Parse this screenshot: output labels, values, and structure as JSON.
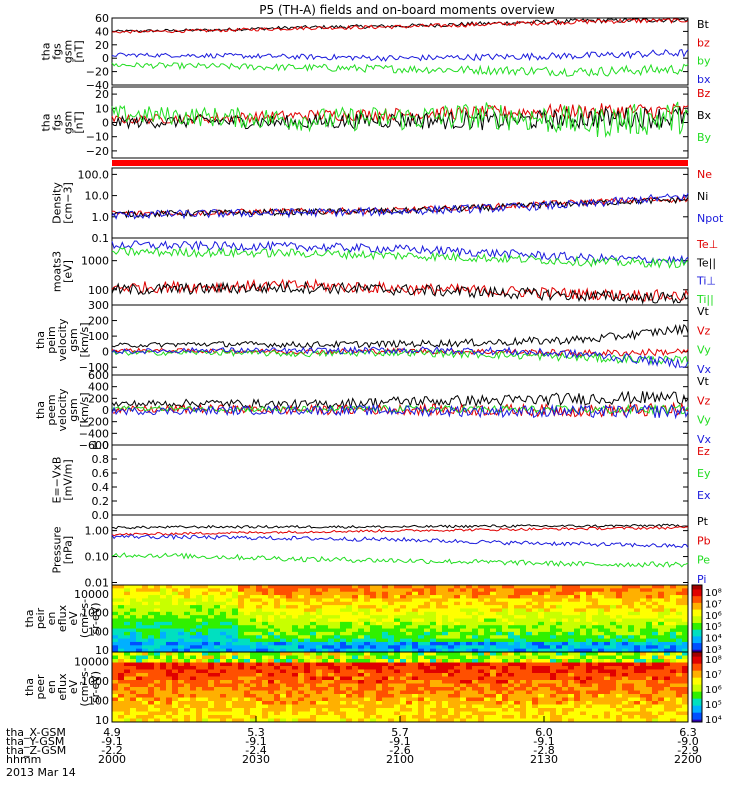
{
  "title": "P5 (TH-A) fields and on-board moments overview",
  "date_label": "2013 Mar 14",
  "footer": {
    "rows": [
      {
        "label": "tha_X-GSM",
        "values": [
          "4.9",
          "5.3",
          "5.7",
          "6.0",
          "6.3"
        ]
      },
      {
        "label": "tha_Y-GSM",
        "values": [
          "-9.1",
          "-9.1",
          "-9.1",
          "-9.1",
          "-9.0"
        ]
      },
      {
        "label": "tha_Z-GSM",
        "values": [
          "-2.2",
          "-2.4",
          "-2.6",
          "-2.8",
          "-2.9"
        ]
      },
      {
        "label": "hhmm",
        "values": [
          "2000",
          "2030",
          "2100",
          "2130",
          "2200"
        ]
      }
    ]
  },
  "colors": {
    "black": "#000000",
    "red": "#e00000",
    "green": "#22dd22",
    "blue": "#1a1adc",
    "magenta": "#a000a0"
  },
  "chart_data": [
    {
      "type": "line",
      "ylabel": [
        "tha",
        "fgs",
        "gsm",
        "[nT]"
      ],
      "ylim": [
        -40,
        60
      ],
      "ticks": [
        "60",
        "40",
        "20",
        "0",
        "−20",
        "−40"
      ],
      "tick_values": [
        60,
        40,
        20,
        0,
        -20,
        -40
      ],
      "series": [
        {
          "name": "Bt",
          "color": "#000000",
          "base": [
            40,
            42,
            46,
            48,
            52,
            56,
            58
          ],
          "noise": 2
        },
        {
          "name": "bz",
          "color": "#e00000",
          "base": [
            39,
            41,
            45,
            47,
            51,
            55,
            57
          ],
          "noise": 2
        },
        {
          "name": "by",
          "color": "#22dd22",
          "base": [
            -10,
            -12,
            -14,
            -16,
            -18,
            -20,
            -16
          ],
          "noise": 4
        },
        {
          "name": "bx",
          "color": "#1a1adc",
          "base": [
            5,
            4,
            2,
            0,
            2,
            4,
            8
          ],
          "noise": 3
        }
      ]
    },
    {
      "type": "line",
      "ylabel": [
        "tha",
        "fgs",
        "gsm",
        "[nT]"
      ],
      "ylim": [
        -25,
        25
      ],
      "ticks": [
        "20",
        "10",
        "0",
        "−10",
        "−20"
      ],
      "tick_values": [
        20,
        10,
        0,
        -10,
        -20
      ],
      "series": [
        {
          "name": "Bz",
          "color": "#e00000",
          "base": [
            2,
            3,
            5,
            6,
            7,
            8,
            8
          ],
          "noise": 3
        },
        {
          "name": "Bx",
          "color": "#000000",
          "base": [
            0,
            1,
            0,
            2,
            1,
            3,
            4
          ],
          "noise": 4
        },
        {
          "name": "By",
          "color": "#22dd22",
          "base": [
            6,
            4,
            2,
            3,
            5,
            0,
            4
          ],
          "noise": 6
        }
      ]
    },
    {
      "type": "bar",
      "note": "solid red band (mode indicator)",
      "color": "#ff0000"
    },
    {
      "type": "line",
      "ylabel": [
        "Density",
        "[cm−3]"
      ],
      "scale": "log",
      "ylim": [
        0.1,
        200
      ],
      "ticks": [
        "100.0",
        "10.0",
        "1.0",
        "0.1"
      ],
      "tick_values": [
        100,
        10,
        1,
        0.1
      ],
      "series": [
        {
          "name": "Ne",
          "color": "#e00000",
          "base": [
            1.4,
            1.6,
            1.8,
            2.0,
            3.0,
            5.0,
            7.0
          ],
          "noise": 0.15
        },
        {
          "name": "Ni",
          "color": "#000000",
          "base": [
            1.3,
            1.5,
            1.7,
            1.9,
            2.8,
            4.5,
            6.5
          ],
          "noise": 0.15
        },
        {
          "name": "Npot",
          "color": "#1a1adc",
          "base": [
            1.2,
            1.4,
            1.6,
            1.8,
            2.6,
            4.0,
            9.0
          ],
          "noise": 0.2
        }
      ]
    },
    {
      "type": "line",
      "ylabel": [
        "moats3",
        "[eV]"
      ],
      "scale": "log",
      "ylim": [
        30,
        6000
      ],
      "ticks": [
        "1000",
        "100"
      ],
      "tick_values": [
        1000,
        100
      ],
      "series": [
        {
          "name": "Te⊥",
          "color": "#e00000",
          "base": [
            120,
            130,
            140,
            110,
            90,
            70,
            60
          ],
          "noise": 0.2
        },
        {
          "name": "Te||",
          "color": "#000000",
          "base": [
            100,
            110,
            120,
            100,
            80,
            60,
            50
          ],
          "noise": 0.2
        },
        {
          "name": "Ti⊥",
          "color": "#1a1adc",
          "base": [
            3500,
            3200,
            3000,
            2500,
            1800,
            1200,
            1000
          ],
          "noise": 0.15
        },
        {
          "name": "Ti||",
          "color": "#22dd22",
          "base": [
            2000,
            1900,
            1800,
            1500,
            1200,
            900,
            800
          ],
          "noise": 0.15
        }
      ]
    },
    {
      "type": "line",
      "ylabel": [
        "tha",
        "peim",
        "velocity",
        "gsm",
        "[km/s]"
      ],
      "ylim": [
        -150,
        300
      ],
      "ticks": [
        "300",
        "200",
        "100",
        "0",
        "−100"
      ],
      "tick_values": [
        300,
        200,
        100,
        0,
        -100
      ],
      "series": [
        {
          "name": "Vt",
          "color": "#000000",
          "base": [
            40,
            50,
            45,
            50,
            60,
            80,
            150
          ],
          "noise": 15
        },
        {
          "name": "Vz",
          "color": "#e00000",
          "base": [
            10,
            5,
            0,
            5,
            0,
            -10,
            0
          ],
          "noise": 12
        },
        {
          "name": "Vy",
          "color": "#22dd22",
          "base": [
            -10,
            -5,
            -15,
            -5,
            -20,
            -40,
            -60
          ],
          "noise": 15
        },
        {
          "name": "Vx",
          "color": "#1a1adc",
          "base": [
            0,
            10,
            5,
            10,
            5,
            -20,
            -80
          ],
          "noise": 15
        }
      ]
    },
    {
      "type": "line",
      "ylabel": [
        "tha",
        "peem",
        "velocity",
        "gsm",
        "[km/s]"
      ],
      "ylim": [
        -600,
        600
      ],
      "ticks": [
        "600",
        "400",
        "200",
        "0",
        "−200",
        "−400",
        "−600"
      ],
      "tick_values": [
        600,
        400,
        200,
        0,
        -200,
        -400,
        -600
      ],
      "series": [
        {
          "name": "Vt",
          "color": "#000000",
          "base": [
            100,
            120,
            90,
            150,
            160,
            200,
            220
          ],
          "noise": 60
        },
        {
          "name": "Vz",
          "color": "#e00000",
          "base": [
            0,
            20,
            0,
            10,
            0,
            -10,
            0
          ],
          "noise": 60
        },
        {
          "name": "Vy",
          "color": "#22dd22",
          "base": [
            30,
            20,
            10,
            20,
            10,
            0,
            10
          ],
          "noise": 40
        },
        {
          "name": "Vx",
          "color": "#1a1adc",
          "base": [
            -20,
            -10,
            0,
            -10,
            -20,
            -30,
            -20
          ],
          "noise": 60
        }
      ]
    },
    {
      "type": "line",
      "ylabel": [
        "E=−VxB",
        "[mV/m]"
      ],
      "ylim": [
        0,
        1
      ],
      "ticks": [
        "1.0",
        "0.8",
        "0.6",
        "0.4",
        "0.2",
        "0.0"
      ],
      "tick_values": [
        1,
        0.8,
        0.6,
        0.4,
        0.2,
        0
      ],
      "series": [
        {
          "name": "Ez",
          "color": "#e00000",
          "base": [],
          "noise": 0
        },
        {
          "name": "Ey",
          "color": "#22dd22",
          "base": [],
          "noise": 0
        },
        {
          "name": "Ex",
          "color": "#1a1adc",
          "base": [],
          "noise": 0
        }
      ]
    },
    {
      "type": "line",
      "ylabel": [
        "Pressure",
        "[nPa]"
      ],
      "scale": "log",
      "ylim": [
        0.008,
        4
      ],
      "ticks": [
        "1.00",
        "0.10",
        "0.01"
      ],
      "tick_values": [
        1,
        0.1,
        0.01
      ],
      "series": [
        {
          "name": "Pt",
          "color": "#000000",
          "base": [
            1.3,
            1.4,
            1.4,
            1.4,
            1.5,
            1.5,
            1.6
          ],
          "noise": 0.05
        },
        {
          "name": "Pb",
          "color": "#e00000",
          "base": [
            0.7,
            0.8,
            0.9,
            1.0,
            1.1,
            1.2,
            1.3
          ],
          "noise": 0.05
        },
        {
          "name": "Pe",
          "color": "#22dd22",
          "base": [
            0.12,
            0.1,
            0.08,
            0.07,
            0.06,
            0.05,
            0.05
          ],
          "noise": 0.1
        },
        {
          "name": "Pi",
          "color": "#1a1adc",
          "base": [
            0.6,
            0.55,
            0.5,
            0.45,
            0.35,
            0.3,
            0.25
          ],
          "noise": 0.08
        }
      ]
    },
    {
      "type": "heatmap",
      "ylabel": [
        "tha",
        "peir",
        "en",
        "eflux",
        "eV",
        "(cm²-s-",
        "sr-eV)"
      ],
      "scale": "log",
      "ylim": [
        8,
        30000
      ],
      "ticks": [
        "10000",
        "1000",
        "100",
        "10"
      ],
      "tick_values": [
        10000,
        1000,
        100,
        10
      ],
      "colorbar_ticks": [
        "10⁸",
        "10⁷",
        "10⁶",
        "10⁵",
        "10⁴",
        "10³"
      ]
    },
    {
      "type": "heatmap",
      "ylabel": [
        "tha",
        "peer",
        "en",
        "eflux",
        "eV",
        "(cm²-s-",
        "sr-eV)"
      ],
      "scale": "log",
      "ylim": [
        8,
        30000
      ],
      "ticks": [
        "10000",
        "1000",
        "100",
        "10"
      ],
      "tick_values": [
        10000,
        1000,
        100,
        10
      ],
      "colorbar_ticks": [
        "10⁸",
        "10⁷",
        "10⁶",
        "10⁵",
        "10⁴"
      ]
    }
  ]
}
